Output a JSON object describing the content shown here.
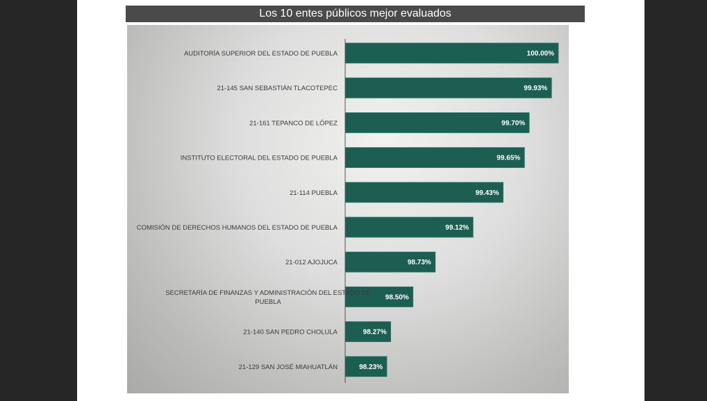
{
  "chart_data": {
    "type": "bar",
    "orientation": "horizontal",
    "title": "Los 10 entes públicos mejor evaluados",
    "categories": [
      "AUDITORÍA SUPERIOR DEL ESTADO DE PUEBLA",
      "21-145 SAN SEBASTIÁN TLACOTEPEC",
      "21-161 TEPANCO DE LÓPEZ",
      "INSTITUTO ELECTORAL DEL ESTADO DE PUEBLA",
      "21-114 PUEBLA",
      "COMISIÓN DE DERECHOS HUMANOS DEL ESTADO DE PUEBLA",
      "21-012 AJOJUCA",
      "SECRETARÍA DE FINANZAS Y ADMINISTRACIÓN DEL ESTADO DE PUEBLA",
      "21-140 SAN PEDRO CHOLULA",
      "21-129 SAN JOSÉ MIAHUATLÁN"
    ],
    "category_lines": [
      [
        "AUDITORÍA SUPERIOR DEL ESTADO DE PUEBLA"
      ],
      [
        "21-145 SAN SEBASTIÁN TLACOTEPEC"
      ],
      [
        "21-161 TEPANCO DE LÓPEZ"
      ],
      [
        "INSTITUTO ELECTORAL DEL ESTADO DE PUEBLA"
      ],
      [
        "21-114 PUEBLA"
      ],
      [
        "COMISIÓN DE DERECHOS HUMANOS DEL ESTADO DE PUEBLA"
      ],
      [
        "21-012 AJOJUCA"
      ],
      [
        "SECRETARÍA DE FINANZAS Y ADMINISTRACIÓN DEL ESTADO DE",
        "PUEBLA"
      ],
      [
        "21-140 SAN PEDRO CHOLULA"
      ],
      [
        "21-129 SAN JOSÉ MIAHUATLÁN"
      ]
    ],
    "values": [
      100.0,
      99.93,
      99.7,
      99.65,
      99.43,
      99.12,
      98.73,
      98.5,
      98.27,
      98.23
    ],
    "value_labels": [
      "100.00%",
      "99.93%",
      "99.70%",
      "99.65%",
      "99.43%",
      "99.12%",
      "98.73%",
      "98.50%",
      "98.27%",
      "98.23%"
    ],
    "xlim": [
      97.8,
      100.0
    ],
    "xlabel": "",
    "ylabel": "",
    "grid": false,
    "legend": false,
    "bar_color": "#1d5e52"
  }
}
